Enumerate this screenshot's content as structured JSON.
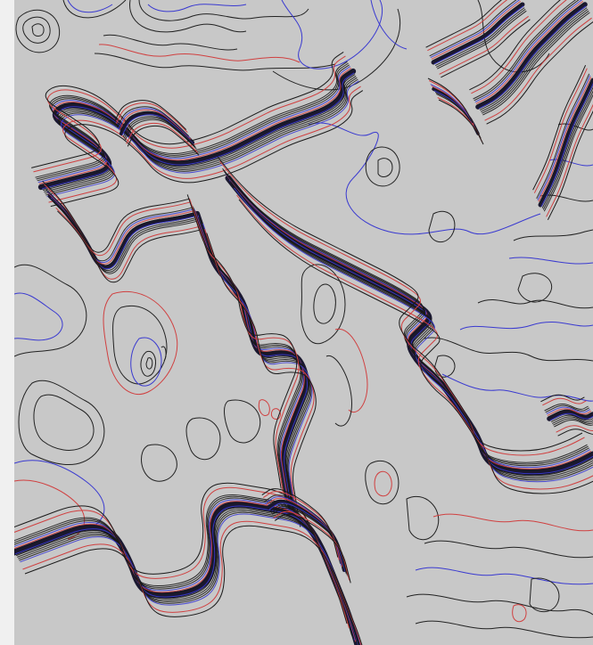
{
  "map": {
    "type": "contour-map",
    "title": "",
    "background": "#c8c8c8",
    "page_background": "#f0f0f0",
    "contour_colors": {
      "minor": "#1a1a1a",
      "index_low": "#3a3ad0",
      "index_high": "#d04040",
      "dense_core": "#1a1830"
    },
    "features": [
      {
        "name": "upper-left-escarpment",
        "kind": "ridge"
      },
      {
        "name": "central-diagonal-ridge",
        "kind": "ridge"
      },
      {
        "name": "lower-left-escarpment",
        "kind": "ridge"
      },
      {
        "name": "lower-center-valley",
        "kind": "valley"
      },
      {
        "name": "right-escarpment",
        "kind": "ridge"
      },
      {
        "name": "top-right-ridges",
        "kind": "ridge"
      },
      {
        "name": "upper-plateau",
        "kind": "plateau"
      },
      {
        "name": "left-knoll",
        "kind": "knoll"
      },
      {
        "name": "center-knoll",
        "kind": "knoll"
      }
    ]
  }
}
